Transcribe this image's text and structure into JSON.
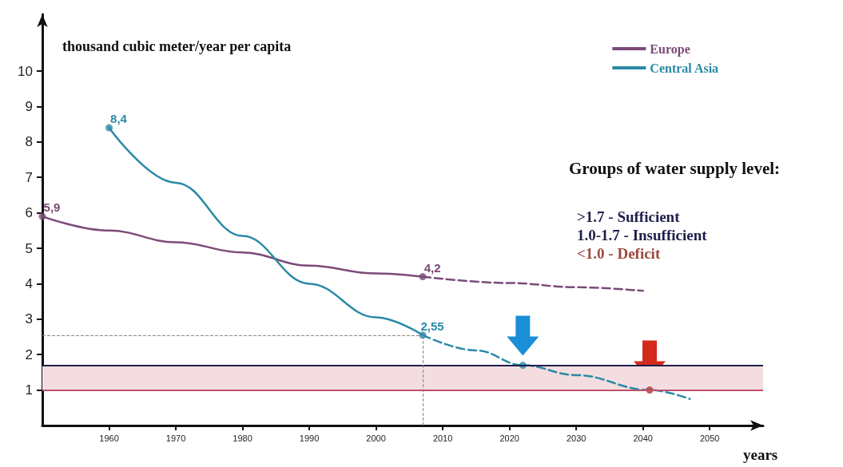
{
  "chart_data": {
    "type": "line",
    "xlabel": "years",
    "ylabel": "thousand cubic meter/year per capita",
    "xlim": [
      1950,
      2058
    ],
    "xticks": [
      1960,
      1970,
      1980,
      1990,
      2000,
      2010,
      2020,
      2030,
      2040,
      2050
    ],
    "ylim": [
      0,
      11.6
    ],
    "yticks": [
      1,
      2,
      3,
      4,
      5,
      6,
      7,
      8,
      9,
      10
    ],
    "grid": false,
    "legend": "top right",
    "series": [
      {
        "name": "Europe",
        "color": "#7b4a78",
        "x": [
          1950,
          1960,
          1970,
          1980,
          1990,
          2000,
          2007
        ],
        "values": [
          5.9,
          5.5,
          5.17,
          4.88,
          4.51,
          4.29,
          4.2
        ],
        "value_labels": [
          "5,9",
          null,
          null,
          null,
          null,
          null,
          "4,2"
        ],
        "line_style": "solid"
      },
      {
        "color": "#7b4a78",
        "x": [
          2007,
          2020,
          2030,
          2040
        ],
        "values": [
          4.2,
          4.02,
          3.9,
          3.8
        ],
        "line_style": "dashed"
      },
      {
        "name": "Central Asia",
        "color": "#2a8aa6",
        "x": [
          1960,
          1970,
          1980,
          1990,
          2000,
          2007
        ],
        "values": [
          8.4,
          6.85,
          5.35,
          4.0,
          3.05,
          2.55
        ],
        "value_labels": [
          "8,4",
          null,
          null,
          null,
          null,
          "2,55"
        ],
        "line_style": "solid"
      },
      {
        "color": "#2a8aa6",
        "x": [
          2007,
          2015,
          2022,
          2030,
          2041,
          2047
        ],
        "values": [
          2.55,
          2.12,
          1.7,
          1.42,
          1.0,
          0.75
        ],
        "line_style": "dashed"
      },
      {
        "type": "scatter",
        "x": [
          1950,
          2007,
          1960,
          2007,
          2022,
          2041
        ],
        "values": [
          5.9,
          4.2,
          8.4,
          2.55,
          1.7,
          1.0
        ],
        "colors": [
          "#7b4a78",
          "#7b4a78",
          "#2a8aa6",
          "#2a8aa6",
          "#2a8aa6",
          "#b0382c"
        ],
        "marker": "circle"
      }
    ],
    "ref_lines": [
      {
        "axis": "y",
        "value": 1.7,
        "color": "#1f1f4a"
      },
      {
        "axis": "y",
        "value": 1.0,
        "color": "#c0506a"
      },
      {
        "axis": "y",
        "value": 2.55,
        "color": "#888888",
        "line_style": "dashed"
      },
      {
        "axis": "x",
        "value": 2007,
        "color": "#888888",
        "line_style": "dashed"
      }
    ],
    "bands": [
      {
        "axis": "y",
        "from": 1.0,
        "to": 1.7,
        "color": "#f3dde0"
      }
    ],
    "annotations": [
      "Groups of water supply level:",
      ">1.7 - Sufficient",
      "1.0-1.7 - Insufficient",
      "<1.0 - Deficit"
    ]
  }
}
